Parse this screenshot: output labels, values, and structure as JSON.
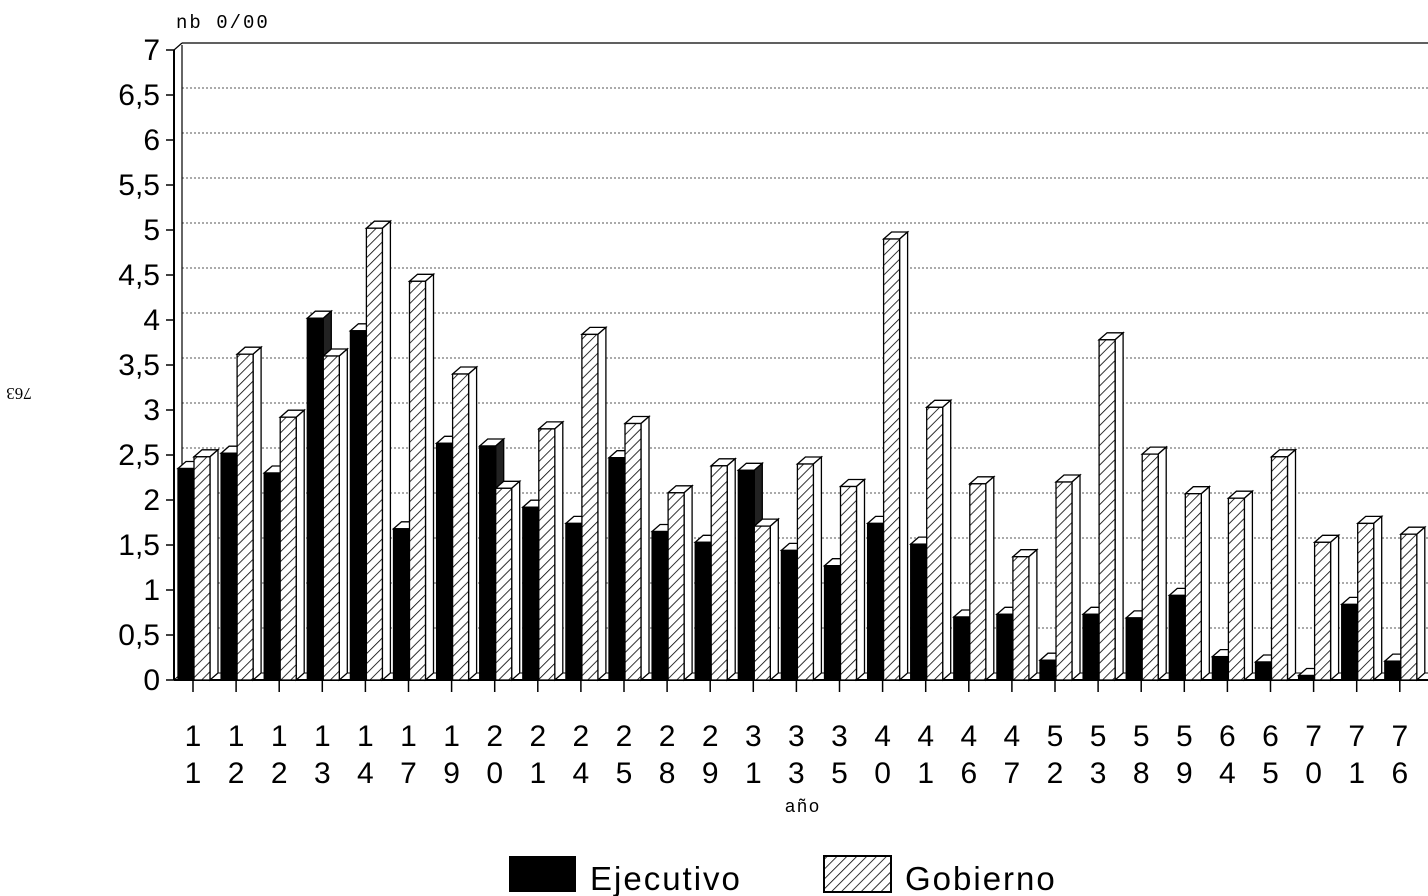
{
  "page_number": "763",
  "chart_data": {
    "type": "bar",
    "bar_style": "3d",
    "title": "",
    "ylabel": "nb 0/00",
    "xlabel": "año",
    "ylim": [
      0,
      7
    ],
    "yticks": [
      "0",
      "0,5",
      "1",
      "1,5",
      "2",
      "2,5",
      "3",
      "3,5",
      "4",
      "4,5",
      "5",
      "5,5",
      "6",
      "6,5",
      "7"
    ],
    "grid": true,
    "legend_position": "bottom",
    "categories": [
      "11",
      "12",
      "12",
      "13",
      "14",
      "17",
      "19",
      "20",
      "21",
      "24",
      "25",
      "28",
      "29",
      "31",
      "33",
      "35",
      "40",
      "41",
      "46",
      "47",
      "52",
      "53",
      "58",
      "59",
      "64",
      "65",
      "70",
      "71",
      "76"
    ],
    "series": [
      {
        "name": "Ejecutivo",
        "pattern": "solid",
        "values": [
          2.35,
          2.52,
          2.3,
          4.02,
          3.88,
          1.68,
          2.63,
          2.6,
          1.92,
          1.74,
          2.47,
          1.65,
          1.53,
          2.33,
          1.44,
          1.27,
          1.74,
          1.51,
          0.7,
          0.73,
          0.22,
          0.73,
          0.69,
          0.94,
          0.26,
          0.2,
          0.05,
          0.84,
          0.21
        ]
      },
      {
        "name": "Gobierno",
        "pattern": "hatched",
        "values": [
          2.48,
          3.62,
          2.92,
          3.6,
          5.02,
          4.43,
          3.4,
          2.13,
          2.79,
          3.84,
          2.85,
          2.08,
          2.38,
          1.71,
          2.4,
          2.15,
          4.9,
          3.03,
          2.18,
          1.37,
          2.2,
          3.78,
          2.51,
          2.07,
          2.02,
          2.48,
          1.53,
          1.74,
          1.62
        ]
      }
    ],
    "colors": {
      "ejecutivo": "#000000",
      "gobierno": "#ffffff",
      "hatch": "#000000",
      "grid": "#555555"
    }
  }
}
